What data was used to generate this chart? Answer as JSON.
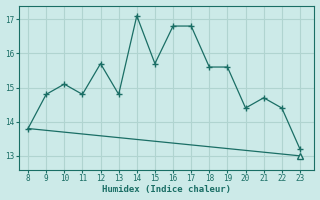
{
  "x": [
    8,
    9,
    10,
    11,
    12,
    13,
    14,
    15,
    16,
    17,
    18,
    19,
    20,
    21,
    22,
    23
  ],
  "y": [
    13.8,
    14.8,
    15.1,
    14.8,
    15.7,
    14.8,
    17.1,
    15.7,
    16.8,
    16.8,
    15.6,
    15.6,
    14.4,
    14.7,
    14.4,
    13.2
  ],
  "triangle_x": 23,
  "triangle_y": 13.0,
  "xlabel": "Humidex (Indice chaleur)",
  "bg_color": "#cceae8",
  "grid_color": "#b0d4d0",
  "line_color": "#1a6e65",
  "xlim": [
    7.5,
    23.8
  ],
  "ylim": [
    12.6,
    17.4
  ],
  "xticks": [
    8,
    9,
    10,
    11,
    12,
    13,
    14,
    15,
    16,
    17,
    18,
    19,
    20,
    21,
    22,
    23
  ],
  "yticks": [
    13,
    14,
    15,
    16,
    17
  ]
}
